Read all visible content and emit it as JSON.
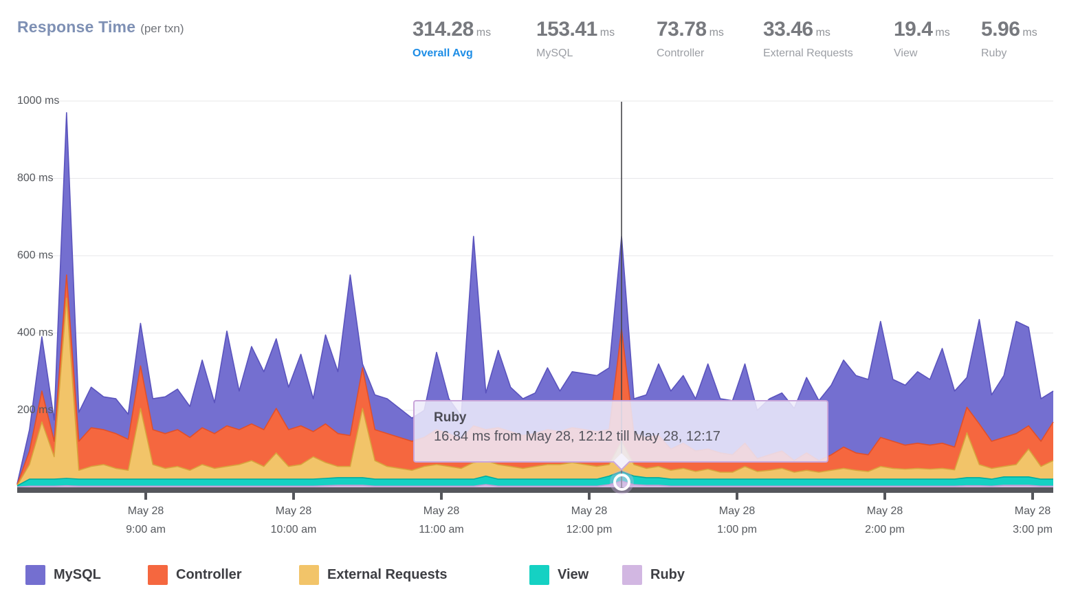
{
  "header": {
    "title": "Response Time",
    "subtitle": "(per txn)"
  },
  "stats": {
    "items": [
      {
        "value": "314.28",
        "unit": "ms",
        "label": "Overall Avg",
        "accent": "#1d8de6"
      },
      {
        "value": "153.41",
        "unit": "ms",
        "label": "MySQL"
      },
      {
        "value": "73.78",
        "unit": "ms",
        "label": "Controller"
      },
      {
        "value": "33.46",
        "unit": "ms",
        "label": "External Requests"
      },
      {
        "value": "19.4",
        "unit": "ms",
        "label": "View"
      },
      {
        "value": "5.96",
        "unit": "ms",
        "label": "Ruby"
      }
    ]
  },
  "tooltip": {
    "title": "Ruby",
    "body": "16.84 ms from May 28, 12:12 till May 28, 12:17"
  },
  "chart_data": {
    "type": "area",
    "stacked": true,
    "unit": "ms",
    "ylim": [
      0,
      1000
    ],
    "grid": true,
    "interval_minutes": 5,
    "y_ticks": [
      {
        "value": 1000,
        "label": "1000 ms"
      },
      {
        "value": 800,
        "label": "800 ms"
      },
      {
        "value": 600,
        "label": "600 ms"
      },
      {
        "value": 400,
        "label": "400 ms"
      },
      {
        "value": 200,
        "label": "200 ms"
      }
    ],
    "x_ticks": [
      {
        "date": "May 28",
        "time": "9:00 am"
      },
      {
        "date": "May 28",
        "time": "10:00 am"
      },
      {
        "date": "May 28",
        "time": "11:00 am"
      },
      {
        "date": "May 28",
        "time": "12:00 pm"
      },
      {
        "date": "May 28",
        "time": "1:00 pm"
      },
      {
        "date": "May 28",
        "time": "2:00 pm"
      },
      {
        "date": "May 28",
        "time": "3:00 pm"
      }
    ],
    "highlight": {
      "index": 49,
      "series": "Ruby",
      "value_ms": 16.84,
      "from": "May 28, 12:12",
      "till": "May 28, 12:17"
    },
    "series": [
      {
        "name": "MySQL",
        "color": "#746fd0",
        "stroke": "#5a53bd",
        "values": [
          2,
          55,
          140,
          55,
          420,
          75,
          105,
          85,
          90,
          65,
          110,
          80,
          95,
          105,
          80,
          175,
          80,
          245,
          100,
          200,
          150,
          180,
          110,
          185,
          85,
          230,
          160,
          415,
          10,
          90,
          90,
          75,
          60,
          70,
          200,
          90,
          60,
          490,
          95,
          200,
          115,
          95,
          105,
          160,
          105,
          145,
          145,
          145,
          160,
          240,
          90,
          110,
          185,
          150,
          175,
          135,
          220,
          140,
          140,
          205,
          125,
          145,
          150,
          135,
          195,
          155,
          180,
          225,
          200,
          195,
          300,
          160,
          155,
          185,
          170,
          245,
          145,
          77,
          270,
          120,
          160,
          290,
          255,
          110,
          80
        ]
      },
      {
        "name": "Controller",
        "color": "#f5673f",
        "stroke": "#e04f2a",
        "values": [
          2,
          35,
          80,
          40,
          60,
          75,
          100,
          90,
          90,
          80,
          110,
          90,
          90,
          95,
          85,
          95,
          90,
          105,
          90,
          95,
          95,
          115,
          95,
          100,
          65,
          100,
          85,
          80,
          105,
          80,
          85,
          80,
          75,
          75,
          90,
          85,
          75,
          95,
          80,
          95,
          90,
          85,
          85,
          90,
          85,
          90,
          90,
          90,
          90,
          290,
          80,
          80,
          80,
          55,
          65,
          53,
          52,
          50,
          45,
          60,
          33,
          40,
          45,
          30,
          45,
          30,
          40,
          55,
          45,
          43,
          75,
          70,
          62,
          65,
          62,
          65,
          59,
          66,
          105,
          70,
          75,
          80,
          60,
          65,
          100
        ]
      },
      {
        "name": "External Requests",
        "color": "#f2c469",
        "stroke": "#d8a33c",
        "values": [
          1,
          38,
          148,
          58,
          466,
          23,
          33,
          38,
          28,
          23,
          183,
          38,
          28,
          33,
          23,
          38,
          28,
          33,
          38,
          48,
          33,
          68,
          33,
          38,
          58,
          41,
          29,
          29,
          179,
          48,
          33,
          28,
          23,
          33,
          38,
          33,
          28,
          43,
          40,
          38,
          33,
          28,
          33,
          38,
          38,
          43,
          38,
          33,
          30,
          78,
          30,
          24,
          29,
          23,
          28,
          20,
          26,
          18,
          18,
          33,
          20,
          23,
          28,
          18,
          23,
          18,
          23,
          28,
          23,
          20,
          33,
          28,
          26,
          28,
          26,
          28,
          24,
          116,
          34,
          28,
          27,
          32,
          72,
          33,
          48
        ]
      },
      {
        "name": "View",
        "color": "#15d1c3",
        "stroke": "#00ab9f",
        "values": [
          3,
          18,
          18,
          18,
          19,
          18,
          18,
          18,
          18,
          18,
          18,
          18,
          18,
          18,
          18,
          18,
          18,
          18,
          18,
          18,
          18,
          18,
          18,
          18,
          18,
          19,
          20,
          20,
          20,
          18,
          18,
          18,
          18,
          18,
          18,
          18,
          18,
          18,
          22,
          18,
          18,
          18,
          18,
          18,
          18,
          18,
          18,
          18,
          22,
          25,
          22,
          20,
          20,
          18,
          18,
          18,
          18,
          18,
          18,
          18,
          18,
          18,
          18,
          18,
          18,
          18,
          18,
          18,
          18,
          18,
          18,
          18,
          18,
          18,
          18,
          18,
          18,
          21,
          21,
          18,
          22,
          22,
          22,
          18,
          18
        ]
      },
      {
        "name": "Ruby",
        "color": "#d2b7e2",
        "stroke": "#bf9bd4",
        "values": [
          2,
          4,
          4,
          4,
          5,
          4,
          4,
          4,
          4,
          4,
          4,
          4,
          4,
          4,
          4,
          4,
          4,
          4,
          4,
          4,
          4,
          4,
          4,
          4,
          4,
          5,
          6,
          6,
          6,
          4,
          4,
          4,
          4,
          4,
          4,
          4,
          4,
          4,
          8,
          4,
          4,
          4,
          4,
          4,
          4,
          4,
          4,
          4,
          8,
          17,
          8,
          6,
          6,
          4,
          4,
          4,
          4,
          4,
          4,
          4,
          4,
          4,
          4,
          4,
          4,
          4,
          4,
          4,
          4,
          4,
          4,
          4,
          4,
          4,
          4,
          4,
          4,
          5,
          5,
          4,
          6,
          6,
          6,
          4,
          4
        ]
      }
    ]
  }
}
